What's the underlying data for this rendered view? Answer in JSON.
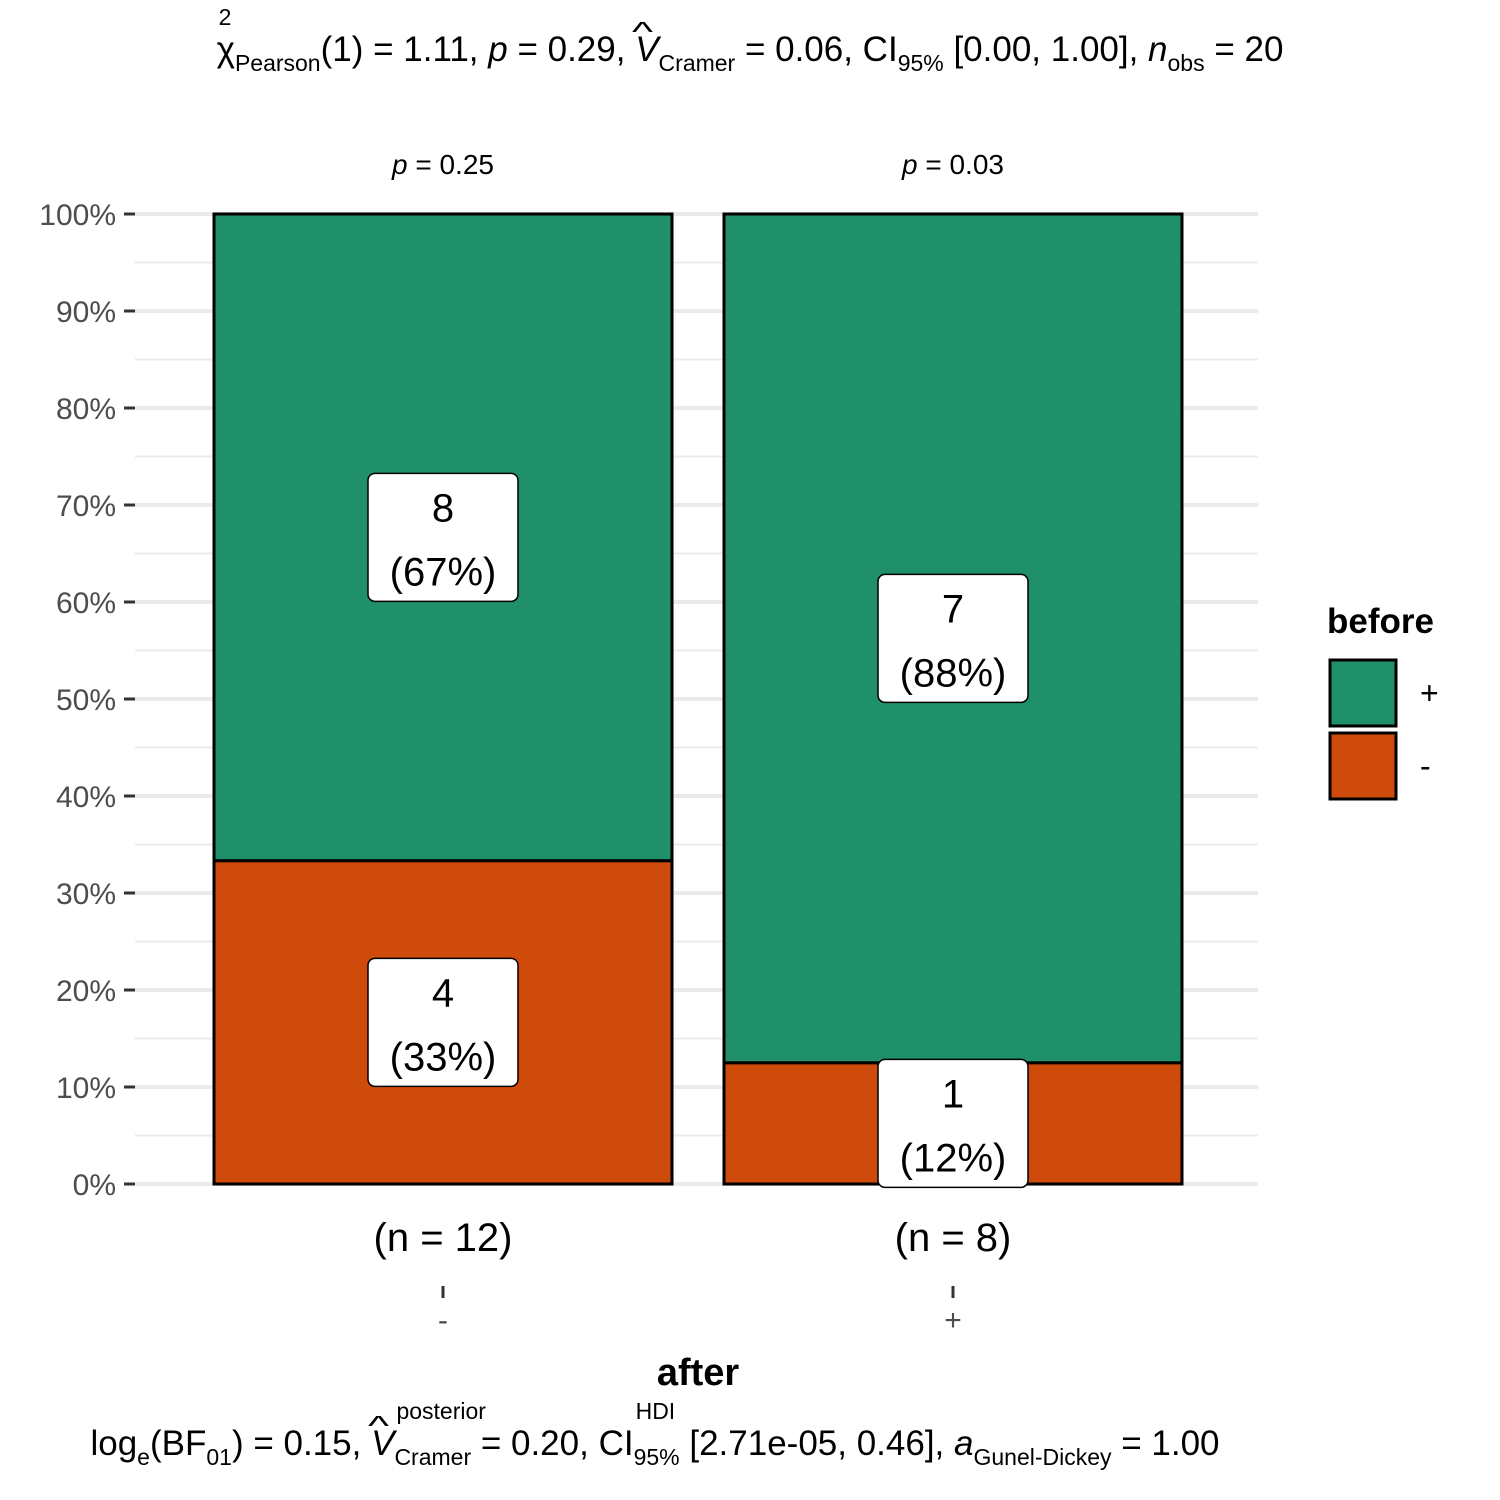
{
  "subtitle": {
    "chi_symbol": "χ",
    "chi_sup": "2",
    "chi_sub": "Pearson",
    "df": "(1) = 1.11, ",
    "p_label": "p",
    "p_value": " = 0.29, ",
    "v_symbol": "V",
    "v_sub": "Cramer",
    "v_value": " = 0.06, CI",
    "ci_sub": "95%",
    "ci_value": " [0.00, 1.00], ",
    "n_label": "n",
    "n_sub": "obs",
    "n_value": " = 20"
  },
  "caption": {
    "log": "log",
    "log_sub": "e",
    "bf": "(BF",
    "bf_sub": "01",
    "bf_value": ") = 0.15, ",
    "v_symbol": "V",
    "v_sup": "posterior",
    "v_sub": "Cramer",
    "v_value": " = 0.20, CI",
    "ci_sup": "HDI",
    "ci_sub": "95%",
    "ci_value": " [2.71e-05, 0.46], ",
    "a_label": "a",
    "a_sub": "Gunel-Dickey",
    "a_value": " = 1.00"
  },
  "chart_data": {
    "type": "bar",
    "stacked": true,
    "percent": true,
    "xlabel": "after",
    "ylabel": "",
    "ylim": [
      0,
      100
    ],
    "y_ticks": [
      "0%",
      "10%",
      "20%",
      "30%",
      "40%",
      "50%",
      "60%",
      "70%",
      "80%",
      "90%",
      "100%"
    ],
    "categories": [
      "-",
      "+"
    ],
    "category_counts": [
      "(n = 12)",
      "(n = 8)"
    ],
    "group_p_values": [
      "p = 0.25",
      "p = 0.03"
    ],
    "legend": {
      "title": "before",
      "position": "right"
    },
    "series": [
      {
        "name": "+",
        "color": "#1f9069",
        "counts": [
          8,
          7
        ],
        "values": [
          66.67,
          87.5
        ],
        "labels": [
          "(67%)",
          "(88%)"
        ]
      },
      {
        "name": "-",
        "color": "#cf4b0b",
        "counts": [
          4,
          1
        ],
        "values": [
          33.33,
          12.5
        ],
        "labels": [
          "(33%)",
          "(12%)"
        ]
      }
    ],
    "grid": true
  }
}
